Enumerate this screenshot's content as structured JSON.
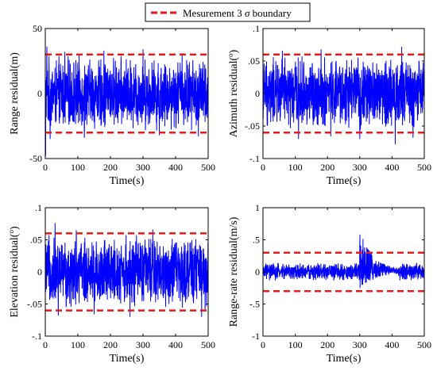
{
  "legend": {
    "label_pre": "Mesurement 3 ",
    "label_sigma": "σ",
    "label_post": " boundary",
    "line_color": "#e41a1c"
  },
  "colors": {
    "series": "#0000ff",
    "boundary": "#e41a1c",
    "axis": "#000000",
    "background": "#ffffff"
  },
  "chart_data": [
    {
      "id": "range",
      "type": "line",
      "xlabel": "Time(s)",
      "ylabel_pre": "Range residual(m)",
      "ylabel_sup": "",
      "ylabel_post": "",
      "xlim": [
        0,
        500
      ],
      "ylim": [
        -50,
        50
      ],
      "xticks": [
        0,
        100,
        200,
        300,
        400,
        500
      ],
      "yticks": [
        -50,
        0,
        50
      ],
      "boundary": [
        -30,
        30
      ],
      "noise_amplitude": 30,
      "spikes": [
        [
          1,
          -48
        ],
        [
          5,
          36
        ],
        [
          15,
          -35
        ],
        [
          60,
          32
        ],
        [
          120,
          -34
        ],
        [
          180,
          33
        ],
        [
          300,
          34
        ],
        [
          350,
          -32
        ],
        [
          420,
          31
        ],
        [
          470,
          -33
        ]
      ],
      "grid": false
    },
    {
      "id": "azimuth",
      "type": "line",
      "xlabel": "Time(s)",
      "ylabel_pre": "Azimuth residual(",
      "ylabel_sup": "o",
      "ylabel_post": ")",
      "xlim": [
        0,
        500
      ],
      "ylim": [
        -0.1,
        0.1
      ],
      "xticks": [
        0,
        100,
        200,
        300,
        400,
        500
      ],
      "yticks": [
        -0.1,
        -0.05,
        0,
        0.05,
        0.1
      ],
      "boundary": [
        -0.06,
        0.06
      ],
      "noise_amplitude": 0.06,
      "spikes": [
        [
          60,
          0.066
        ],
        [
          110,
          -0.07
        ],
        [
          180,
          0.068
        ],
        [
          210,
          -0.066
        ],
        [
          300,
          -0.07
        ],
        [
          410,
          -0.078
        ],
        [
          430,
          0.072
        ],
        [
          465,
          -0.068
        ]
      ],
      "grid": false
    },
    {
      "id": "elevation",
      "type": "line",
      "xlabel": "Time(s)",
      "ylabel_pre": "Elevation residual(",
      "ylabel_sup": "o",
      "ylabel_post": ")",
      "xlim": [
        0,
        500
      ],
      "ylim": [
        -0.1,
        0.1
      ],
      "xticks": [
        0,
        100,
        200,
        300,
        400,
        500
      ],
      "yticks": [
        -0.1,
        -0.05,
        0,
        0.05,
        0.1
      ],
      "boundary": [
        -0.06,
        0.06
      ],
      "noise_amplitude": 0.06,
      "spikes": [
        [
          30,
          0.076
        ],
        [
          40,
          -0.068
        ],
        [
          95,
          0.065
        ],
        [
          150,
          -0.066
        ],
        [
          260,
          -0.07
        ],
        [
          330,
          0.066
        ],
        [
          480,
          -0.07
        ]
      ],
      "grid": false
    },
    {
      "id": "range-rate",
      "type": "line",
      "xlabel": "Time(s)",
      "ylabel_pre": "Range-rate residual(m/s)",
      "ylabel_sup": "",
      "ylabel_post": "",
      "xlim": [
        0,
        500
      ],
      "ylim": [
        -1,
        1
      ],
      "xticks": [
        0,
        100,
        200,
        300,
        400,
        500
      ],
      "yticks": [
        -1,
        -0.5,
        0,
        0.5,
        1
      ],
      "boundary": [
        -0.3,
        0.3
      ],
      "noise_amplitude": 0.15,
      "transient": {
        "start": 300,
        "peak": 0.65,
        "trough": -0.28,
        "decay": 40
      },
      "spikes": [],
      "grid": false
    }
  ]
}
